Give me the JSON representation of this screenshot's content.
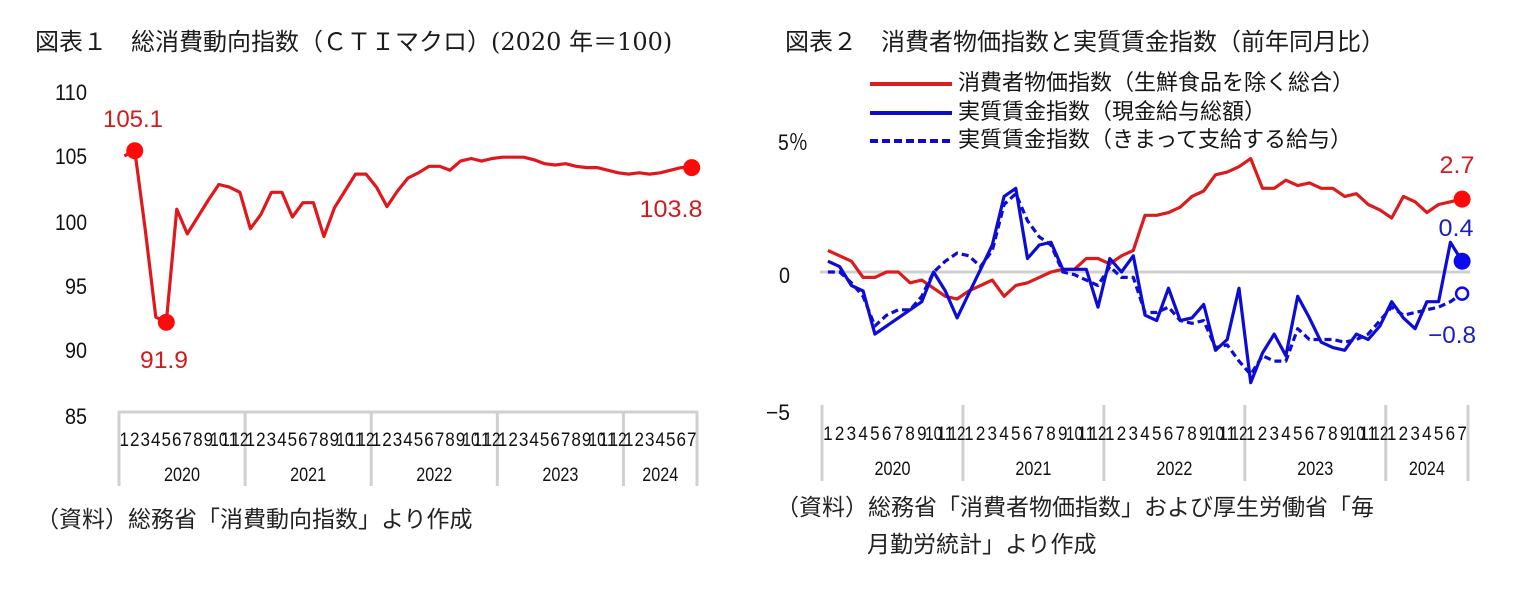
{
  "figure1": {
    "title": "図表１　総消費動向指数（ＣＴＩマクロ）(2020 年＝100)",
    "source": "（資料）総務省「消費動向指数」より作成"
  },
  "figure2": {
    "title": "図表２　消費者物価指数と実質賃金指数（前年同月比）",
    "legend": [
      {
        "label": "消費者物価指数（生鮮食品を除く総合）",
        "color": "#d81e1e",
        "style": "solid"
      },
      {
        "label": "実質賃金指数（現金給与総額）",
        "color": "#0c0cc8",
        "style": "solid"
      },
      {
        "label": "実質賃金指数（きまって支給する給与）",
        "color": "#0c0cc8",
        "style": "dashed"
      }
    ],
    "source_line1": "（資料）総務省「消費者物価指数」および厚生労働省「毎",
    "source_line2": "月勤労統計」より作成"
  },
  "chart_data": [
    {
      "type": "line",
      "title": "総消費動向指数（ＣＴＩマクロ）(2020 年＝100)",
      "xlabel": "",
      "ylabel": "",
      "ylim": [
        85,
        110
      ],
      "axis_line_at": 85,
      "y_ticks": [
        "110",
        "105",
        "100",
        "95",
        "90",
        "85"
      ],
      "grid": false,
      "legend_position": "none",
      "month_ticks": [
        1,
        2,
        3,
        4,
        5,
        6,
        7,
        8,
        9,
        10,
        11,
        12,
        1,
        2,
        3,
        4,
        5,
        6,
        7,
        8,
        9,
        10,
        11,
        12,
        1,
        2,
        3,
        4,
        5,
        6,
        7,
        8,
        9,
        10,
        11,
        12,
        1,
        2,
        3,
        4,
        5,
        6,
        7,
        8,
        9,
        10,
        11,
        12,
        1,
        2,
        3,
        4,
        5,
        6,
        7
      ],
      "year_groups": [
        {
          "label": "2020",
          "months": 12
        },
        {
          "label": "2021",
          "months": 12
        },
        {
          "label": "2022",
          "months": 12
        },
        {
          "label": "2023",
          "months": 12
        },
        {
          "label": "2024",
          "months": 7
        }
      ],
      "series": [
        {
          "key": "cti-macro",
          "name": "総消費動向指数（ＣＴＩマクロ）",
          "color": "#e0181e",
          "marker_color": "#ff0a0a",
          "dash": false,
          "values": [
            104.7,
            105.1,
            99.0,
            92.3,
            91.9,
            100.6,
            98.7,
            100.0,
            101.3,
            102.5,
            102.3,
            101.9,
            99.1,
            100.2,
            101.9,
            101.9,
            100.0,
            101.1,
            101.1,
            98.5,
            100.7,
            102.0,
            103.3,
            103.3,
            102.3,
            100.8,
            102.0,
            103.0,
            103.4,
            103.9,
            103.9,
            103.6,
            104.3,
            104.5,
            104.3,
            104.5,
            104.6,
            104.6,
            104.6,
            104.4,
            104.1,
            104.0,
            104.1,
            103.9,
            103.8,
            103.8,
            103.6,
            103.4,
            103.3,
            103.4,
            103.3,
            103.4,
            103.6,
            103.8,
            103.8
          ]
        }
      ],
      "annotations": [
        {
          "series": 0,
          "index": 1,
          "label": "105.1",
          "marker": "filled",
          "color": "#d01c1c"
        },
        {
          "series": 0,
          "index": 4,
          "label": "91.9",
          "marker": "filled",
          "color": "#d01c1c"
        },
        {
          "series": 0,
          "index": 54,
          "label": "103.8",
          "marker": "filled",
          "color": "#d01c1c"
        }
      ]
    },
    {
      "type": "line",
      "title": "消費者物価指数と実質賃金指数（前年同月比）",
      "xlabel": "",
      "ylabel": "%",
      "ylim": [
        -5,
        5
      ],
      "axis_line_at": 0,
      "y_ticks": [
        "5％",
        "0",
        "−5"
      ],
      "grid": false,
      "legend_position": "top",
      "month_ticks": [
        1,
        2,
        3,
        4,
        5,
        6,
        7,
        8,
        9,
        10,
        11,
        12,
        1,
        2,
        3,
        4,
        5,
        6,
        7,
        8,
        9,
        10,
        11,
        12,
        1,
        2,
        3,
        4,
        5,
        6,
        7,
        8,
        9,
        10,
        11,
        12,
        1,
        2,
        3,
        4,
        5,
        6,
        7,
        8,
        9,
        10,
        11,
        12,
        1,
        2,
        3,
        4,
        5,
        6,
        7
      ],
      "year_groups": [
        {
          "label": "2020",
          "months": 12
        },
        {
          "label": "2021",
          "months": 12
        },
        {
          "label": "2022",
          "months": 12
        },
        {
          "label": "2023",
          "months": 12
        },
        {
          "label": "2024",
          "months": 7
        }
      ],
      "series": [
        {
          "key": "cpi-core",
          "name": "消費者物価指数（生鮮食品を除く総合）",
          "color": "#dc1c1c",
          "marker_color": "#ff0a0a",
          "dash": false,
          "values": [
            0.8,
            0.6,
            0.4,
            -0.2,
            -0.2,
            0.0,
            0.0,
            -0.4,
            -0.3,
            -0.6,
            -0.9,
            -1.0,
            -0.7,
            -0.5,
            -0.3,
            -0.9,
            -0.5,
            -0.4,
            -0.2,
            0.0,
            0.1,
            0.1,
            0.5,
            0.5,
            0.3,
            0.6,
            0.8,
            2.1,
            2.1,
            2.2,
            2.4,
            2.8,
            3.0,
            3.6,
            3.7,
            3.9,
            4.2,
            3.1,
            3.1,
            3.4,
            3.2,
            3.3,
            3.1,
            3.1,
            2.8,
            2.9,
            2.5,
            2.3,
            2.0,
            2.8,
            2.6,
            2.2,
            2.5,
            2.6,
            2.7
          ]
        },
        {
          "key": "real-wage-total",
          "name": "実質賃金指数（現金給与総額）",
          "color": "#0c0cd4",
          "marker_color": "#0a0aee",
          "dash": false,
          "values": [
            0.4,
            0.2,
            -0.5,
            -0.7,
            -2.3,
            -2.0,
            -1.7,
            -1.4,
            -1.1,
            0.0,
            -0.7,
            -1.7,
            -0.8,
            0.1,
            1.0,
            2.8,
            3.1,
            0.5,
            1.0,
            1.1,
            0.1,
            0.1,
            0.1,
            -1.3,
            0.5,
            0.0,
            0.6,
            -1.6,
            -1.8,
            -0.6,
            -1.8,
            -1.7,
            -1.2,
            -2.9,
            -2.5,
            -0.6,
            -4.1,
            -3.0,
            -2.3,
            -3.1,
            -0.9,
            -1.7,
            -2.6,
            -2.8,
            -2.9,
            -2.3,
            -2.5,
            -2.0,
            -1.1,
            -1.7,
            -2.1,
            -1.1,
            -1.1,
            1.1,
            0.4
          ]
        },
        {
          "key": "real-wage-scheduled",
          "name": "実質賃金指数（きまって支給する給与）",
          "color": "#0c0cd4",
          "marker_color": "#0a0aee",
          "dash": true,
          "values": [
            0.0,
            0.0,
            -0.4,
            -0.9,
            -2.0,
            -1.6,
            -1.4,
            -1.4,
            -0.9,
            0.0,
            0.4,
            0.7,
            0.6,
            0.2,
            0.8,
            2.5,
            2.9,
            1.9,
            1.3,
            1.0,
            0.0,
            -0.1,
            -0.3,
            -0.5,
            0.2,
            -0.2,
            -0.2,
            -1.5,
            -1.5,
            -1.3,
            -1.8,
            -1.9,
            -1.8,
            -2.8,
            -2.7,
            -3.3,
            -3.8,
            -3.1,
            -3.3,
            -3.3,
            -2.1,
            -2.5,
            -2.5,
            -2.5,
            -2.6,
            -2.5,
            -2.3,
            -1.8,
            -1.3,
            -1.6,
            -1.5,
            -1.4,
            -1.3,
            -1.1,
            -0.8
          ]
        }
      ],
      "annotations": [
        {
          "series": 0,
          "index": 54,
          "label": "2.7",
          "marker": "filled",
          "color": "#d01c1c"
        },
        {
          "series": 1,
          "index": 54,
          "label": "0.4",
          "marker": "filled",
          "color": "#1c1cc4"
        },
        {
          "series": 2,
          "index": 54,
          "label": "−0.8",
          "marker": "hollow",
          "color": "#1c1cc4"
        }
      ]
    }
  ]
}
